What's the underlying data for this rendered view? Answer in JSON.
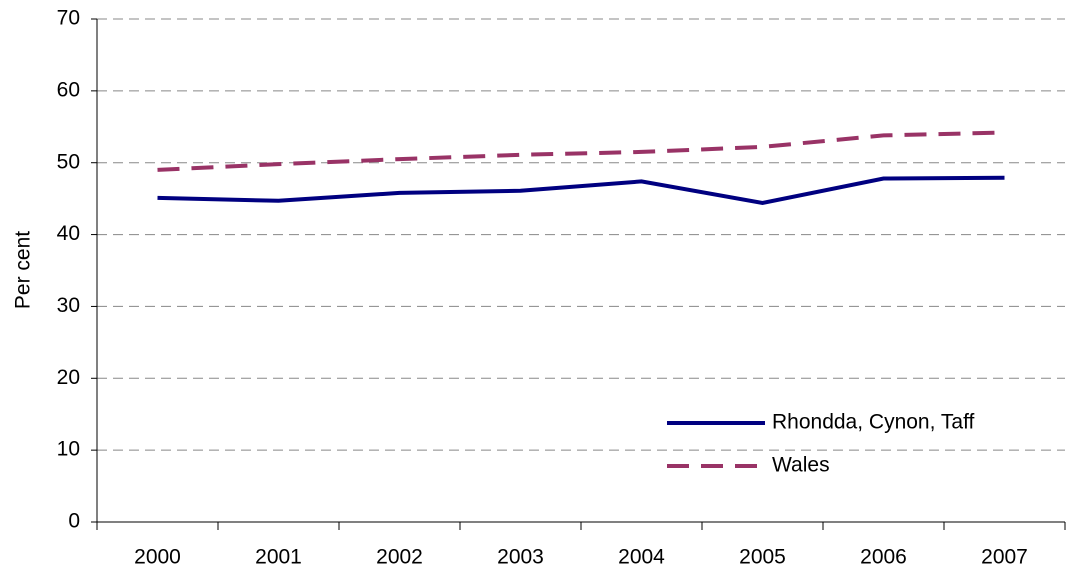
{
  "chart_data": {
    "type": "line",
    "ylabel": "Per cent",
    "categories": [
      "2000",
      "2001",
      "2002",
      "2003",
      "2004",
      "2005",
      "2006",
      "2007"
    ],
    "series": [
      {
        "name": "Rhondda, Cynon, Taff",
        "color": "#000080",
        "dash": false,
        "values": [
          45.1,
          44.7,
          45.8,
          46.1,
          47.4,
          44.4,
          47.8,
          47.9
        ]
      },
      {
        "name": "Wales",
        "color": "#993366",
        "dash": true,
        "values": [
          49.0,
          49.8,
          50.5,
          51.1,
          51.5,
          52.2,
          53.8,
          54.2
        ]
      }
    ],
    "ylim": [
      0,
      70
    ],
    "yticks": [
      0,
      10,
      20,
      30,
      40,
      50,
      60,
      70
    ],
    "grid": true,
    "legend": "lower right"
  }
}
